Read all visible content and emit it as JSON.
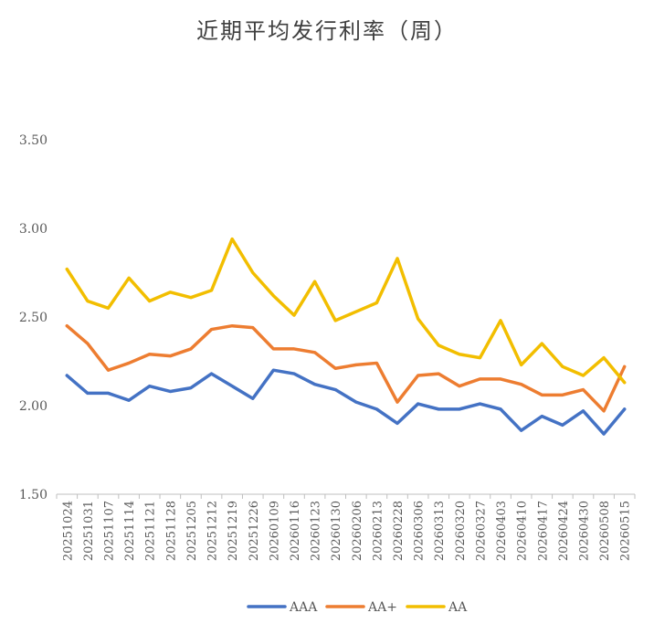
{
  "chart_data": {
    "type": "line",
    "title": "近期平均发行利率（周）",
    "xlabel": "",
    "ylabel": "",
    "ylim": [
      1.5,
      3.5
    ],
    "yticks": [
      "1.50",
      "2.00",
      "2.50",
      "3.00",
      "3.50"
    ],
    "categories": [
      "20251024",
      "20251031",
      "20251107",
      "20251114",
      "20251121",
      "20251128",
      "20251205",
      "20251212",
      "20251219",
      "20251226",
      "20260109",
      "20260116",
      "20260123",
      "20260130",
      "20260206",
      "20260213",
      "20260228",
      "20260306",
      "20260313",
      "20260320",
      "20260327",
      "20260403",
      "20260410",
      "20260417",
      "20260424",
      "20260430",
      "20260508",
      "20260515"
    ],
    "series": [
      {
        "name": "AAA",
        "color": "#4472C4",
        "values": [
          2.17,
          2.07,
          2.07,
          2.03,
          2.11,
          2.08,
          2.1,
          2.18,
          2.11,
          2.04,
          2.2,
          2.18,
          2.12,
          2.09,
          2.02,
          1.98,
          1.9,
          2.01,
          1.98,
          1.98,
          2.01,
          1.98,
          1.86,
          1.94,
          1.89,
          1.97,
          1.84,
          1.98
        ]
      },
      {
        "name": "AA+",
        "color": "#ED7D31",
        "values": [
          2.45,
          2.35,
          2.2,
          2.24,
          2.29,
          2.28,
          2.32,
          2.43,
          2.45,
          2.44,
          2.32,
          2.32,
          2.3,
          2.21,
          2.23,
          2.24,
          2.02,
          2.17,
          2.18,
          2.11,
          2.15,
          2.15,
          2.12,
          2.06,
          2.06,
          2.09,
          1.97,
          2.22
        ]
      },
      {
        "name": "AA",
        "color": "#F2BE00",
        "values": [
          2.77,
          2.59,
          2.55,
          2.72,
          2.59,
          2.64,
          2.61,
          2.65,
          2.94,
          2.75,
          2.62,
          2.51,
          2.7,
          2.48,
          2.53,
          2.58,
          2.83,
          2.49,
          2.34,
          2.29,
          2.27,
          2.48,
          2.23,
          2.35,
          2.22,
          2.17,
          2.27,
          2.13
        ]
      }
    ],
    "grid": false,
    "legend_position": "bottom"
  }
}
